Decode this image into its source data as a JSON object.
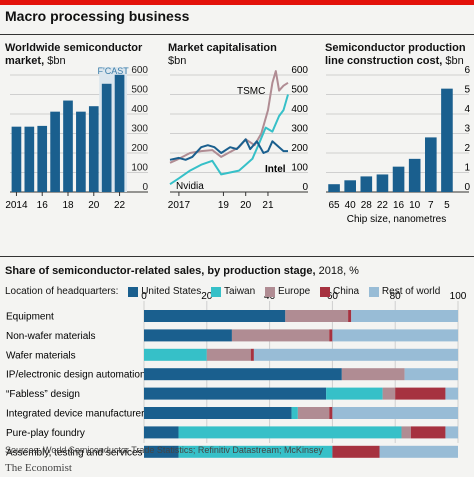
{
  "title": "Macro processing business",
  "colors": {
    "accent": "#e3120b",
    "navy": "#1a5f8e",
    "teal": "#36c0c8",
    "mauve": "#b08c93",
    "dark_red": "#a63240",
    "light_blue": "#98bcd6"
  },
  "chart_data": [
    {
      "type": "bar",
      "title": "Worldwide semiconductor market,",
      "unit": "$bn",
      "categories": [
        "2014",
        "2015",
        "2016",
        "2017",
        "2018",
        "2019",
        "2020",
        "2021",
        "2022"
      ],
      "x_tick_labels": [
        "2014",
        "16",
        "18",
        "20",
        "22"
      ],
      "values": [
        335,
        335,
        339,
        412,
        469,
        412,
        440,
        555,
        601
      ],
      "forecast_label": "F'CAST",
      "forecast_from": "2021",
      "ylim": [
        0,
        600
      ],
      "yticks": [
        "600",
        "500",
        "400",
        "300",
        "200",
        "100",
        "0"
      ]
    },
    {
      "type": "line",
      "title": "Market capitalisation",
      "unit": "$bn",
      "x_tick_labels": [
        "2017",
        "19",
        "20",
        "21"
      ],
      "xlim": [
        2016.6,
        2021.9
      ],
      "ylim": [
        0,
        600
      ],
      "yticks": [
        "600",
        "500",
        "400",
        "300",
        "200",
        "100",
        "0"
      ],
      "series": [
        {
          "name": "TSMC",
          "points": [
            [
              2016.6,
              150
            ],
            [
              2017.0,
              170
            ],
            [
              2017.5,
              200
            ],
            [
              2018.0,
              210
            ],
            [
              2018.5,
              215
            ],
            [
              2018.9,
              180
            ],
            [
              2019.3,
              205
            ],
            [
              2019.7,
              230
            ],
            [
              2020.0,
              270
            ],
            [
              2020.4,
              240
            ],
            [
              2020.7,
              300
            ],
            [
              2021.0,
              420
            ],
            [
              2021.2,
              560
            ],
            [
              2021.35,
              620
            ],
            [
              2021.5,
              520
            ],
            [
              2021.7,
              545
            ],
            [
              2021.9,
              560
            ]
          ]
        },
        {
          "name": "Nvidia",
          "points": [
            [
              2016.6,
              40
            ],
            [
              2017.0,
              70
            ],
            [
              2017.5,
              110
            ],
            [
              2018.0,
              140
            ],
            [
              2018.5,
              160
            ],
            [
              2018.9,
              90
            ],
            [
              2019.3,
              100
            ],
            [
              2019.7,
              110
            ],
            [
              2020.0,
              140
            ],
            [
              2020.3,
              170
            ],
            [
              2020.6,
              250
            ],
            [
              2020.9,
              330
            ],
            [
              2021.2,
              310
            ],
            [
              2021.5,
              390
            ],
            [
              2021.7,
              420
            ],
            [
              2021.9,
              500
            ]
          ]
        },
        {
          "name": "Intel",
          "points": [
            [
              2016.6,
              165
            ],
            [
              2017.0,
              175
            ],
            [
              2017.3,
              165
            ],
            [
              2017.6,
              180
            ],
            [
              2018.0,
              230
            ],
            [
              2018.3,
              240
            ],
            [
              2018.6,
              230
            ],
            [
              2018.9,
              200
            ],
            [
              2019.3,
              230
            ],
            [
              2019.6,
              220
            ],
            [
              2020.0,
              270
            ],
            [
              2020.2,
              220
            ],
            [
              2020.5,
              260
            ],
            [
              2020.8,
              200
            ],
            [
              2021.0,
              210
            ],
            [
              2021.2,
              260
            ],
            [
              2021.5,
              230
            ],
            [
              2021.7,
              210
            ],
            [
              2021.9,
              210
            ]
          ]
        }
      ]
    },
    {
      "type": "bar",
      "title": "Semiconductor production line construction cost,",
      "unit": "$bn",
      "xlabel": "Chip size, nanometres",
      "categories": [
        "65",
        "40",
        "28",
        "22",
        "16",
        "10",
        "7",
        "5"
      ],
      "values": [
        0.4,
        0.6,
        0.8,
        0.9,
        1.3,
        1.7,
        2.8,
        5.3
      ],
      "ylim": [
        0,
        6
      ],
      "yticks": [
        "6",
        "5",
        "4",
        "3",
        "2",
        "1",
        "0"
      ]
    },
    {
      "type": "bar",
      "orientation": "horizontal-stacked",
      "title": "Share of semiconductor-related sales, by production stage,",
      "unit": "2018, %",
      "legend_label": "Location of headquarters:",
      "xlim": [
        0,
        100
      ],
      "xticks": [
        "0",
        "20",
        "40",
        "60",
        "80",
        "100"
      ],
      "series": [
        {
          "name": "United States",
          "color": "#1a5f8e"
        },
        {
          "name": "Taiwan",
          "color": "#36c0c8"
        },
        {
          "name": "Europe",
          "color": "#b08c93"
        },
        {
          "name": "China",
          "color": "#a63240"
        },
        {
          "name": "Rest of world",
          "color": "#98bcd6"
        }
      ],
      "categories": [
        "Equipment",
        "Non-wafer materials",
        "Wafer materials",
        "IP/electronic design automation",
        "“Fabless” design",
        "Integrated device manufacturers",
        "Pure-play foundry",
        "Assembly, testing and services"
      ],
      "values": [
        [
          45,
          0,
          20,
          1,
          34
        ],
        [
          28,
          0,
          31,
          1,
          40
        ],
        [
          0,
          20,
          14,
          1,
          65
        ],
        [
          63,
          0,
          20,
          0,
          17
        ],
        [
          58,
          18,
          4,
          16,
          4
        ],
        [
          47,
          2,
          10,
          1,
          40
        ],
        [
          11,
          71,
          3,
          11,
          4
        ],
        [
          11,
          49,
          0,
          15,
          25
        ]
      ]
    }
  ],
  "source": "Sources: World Semiconductor Trade Statistics; Refinitiv Datastream; McKinsey",
  "logo": "The Economist"
}
